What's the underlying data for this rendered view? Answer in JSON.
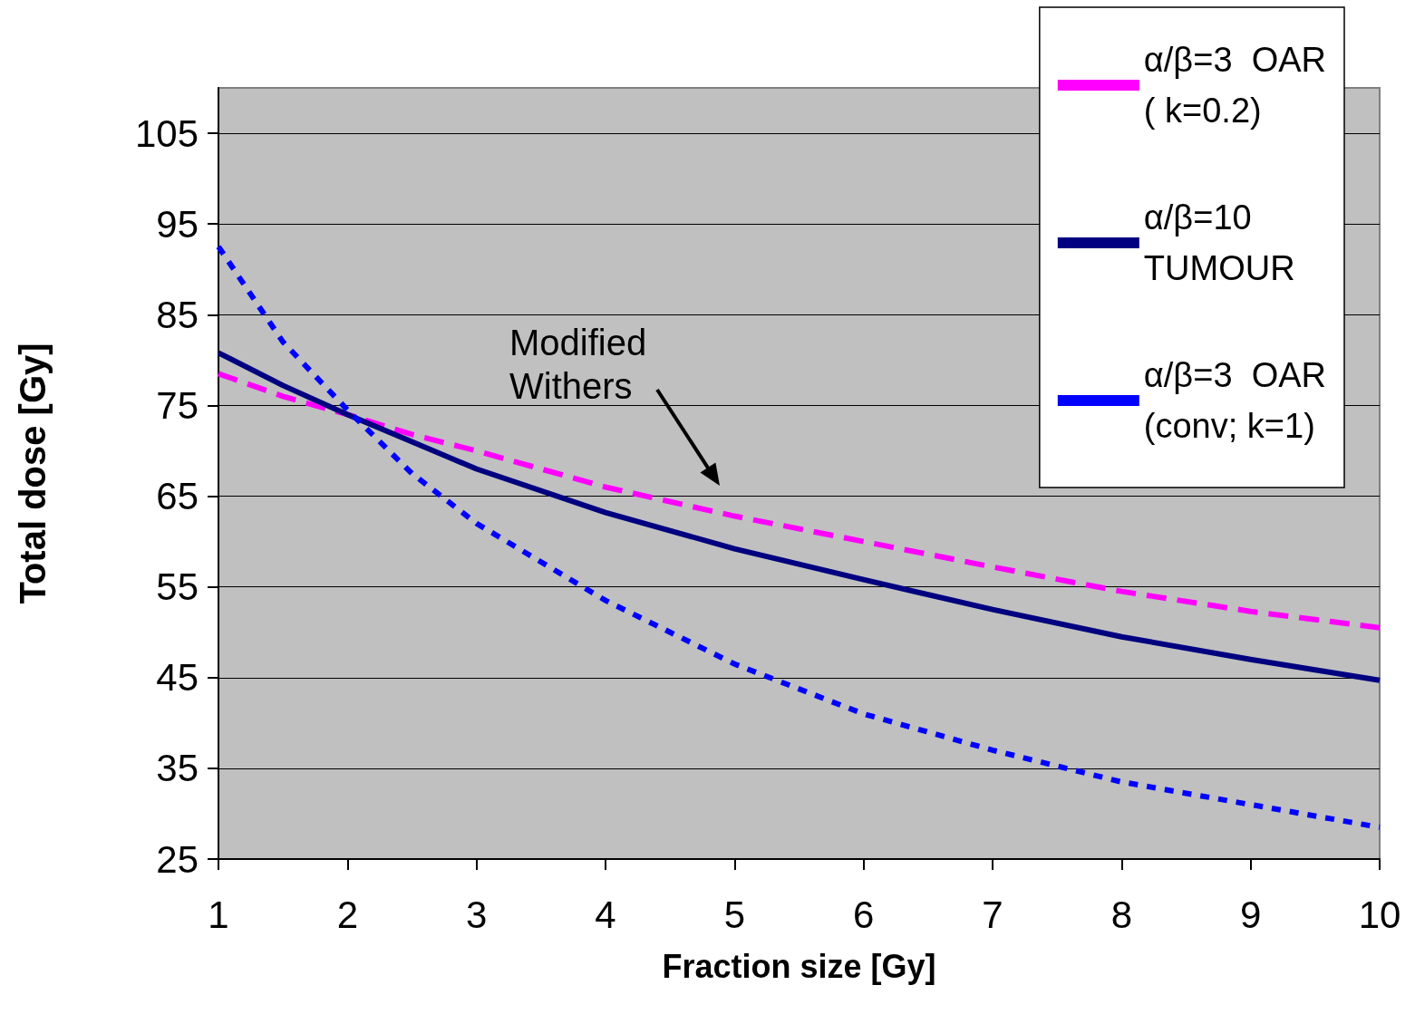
{
  "chart_data": {
    "type": "line",
    "xlabel": "Fraction size [Gy]",
    "ylabel": "Total dose [Gy]",
    "x": [
      1,
      1.5,
      2,
      2.5,
      3,
      4,
      5,
      6,
      7,
      8,
      9,
      10
    ],
    "series": [
      {
        "name": "α/β=3  OAR\n( k=0.2)",
        "color": "#ff00ff",
        "line_style": "dashed",
        "values": [
          78.5,
          76,
          74,
          71.8,
          70,
          66,
          62.8,
          60,
          57.2,
          54.5,
          52.3,
          50.5
        ]
      },
      {
        "name": "α/β=10\nTUMOUR",
        "color": "#000080",
        "line_style": "solid",
        "values": [
          80.8,
          77.2,
          74,
          71,
          68,
          63.2,
          59.2,
          55.8,
          52.5,
          49.5,
          47,
          44.7
        ]
      },
      {
        "name": "α/β=3  OAR\n(conv; k=1)",
        "color": "#0000ff",
        "line_style": "dotted",
        "values": [
          92.5,
          82,
          74.5,
          67.5,
          62,
          53.5,
          46.5,
          41,
          37,
          33.5,
          31,
          28.5
        ]
      }
    ],
    "xlim": [
      1,
      10
    ],
    "xticks": [
      1,
      2,
      3,
      4,
      5,
      6,
      7,
      8,
      9,
      10
    ],
    "ylim": [
      25,
      110
    ],
    "yticks": [
      25,
      35,
      45,
      55,
      65,
      75,
      85,
      95,
      105
    ],
    "grid": "y",
    "legend": "top right",
    "marker": "none",
    "annotations": [
      "Modified Withers"
    ]
  }
}
